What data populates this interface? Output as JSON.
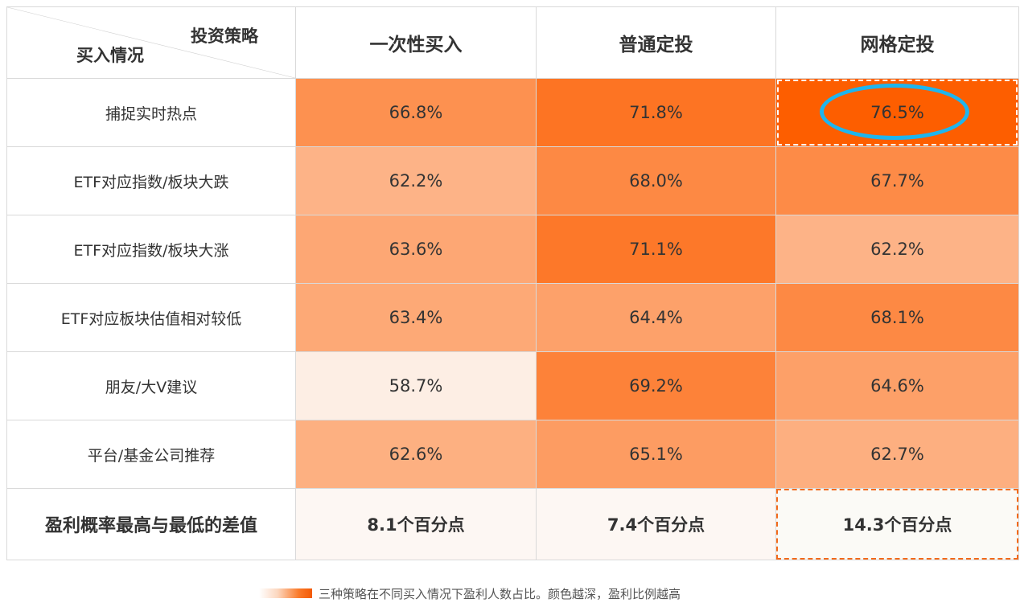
{
  "colors": {
    "scale_low": "#fdeee4",
    "scale_high": "#fd5e00",
    "footer_bg": "#fdf7f3",
    "dash_orange": "#f26a1b",
    "ellipse_blue": "#1eb5ee",
    "grid": "#d9d9d9"
  },
  "chart_data": {
    "type": "heatmap",
    "title": "",
    "corner": {
      "column_axis_label": "投资策略",
      "row_axis_label": "买入情况"
    },
    "columns": [
      "一次性买入",
      "普通定投",
      "网格定投"
    ],
    "rows": [
      {
        "label": "捕捉实时热点",
        "values": [
          66.8,
          71.8,
          76.5
        ],
        "display": [
          "66.8%",
          "71.8%",
          "76.5%"
        ]
      },
      {
        "label": "ETF对应指数/板块大跌",
        "values": [
          62.2,
          68.0,
          67.7
        ],
        "display": [
          "62.2%",
          "68.0%",
          "67.7%"
        ]
      },
      {
        "label": "ETF对应指数/板块大涨",
        "values": [
          63.6,
          71.1,
          62.2
        ],
        "display": [
          "63.6%",
          "71.1%",
          "62.2%"
        ]
      },
      {
        "label": "ETF对应板块估值相对较低",
        "values": [
          63.4,
          64.4,
          68.1
        ],
        "display": [
          "63.4%",
          "64.4%",
          "68.1%"
        ]
      },
      {
        "label": "朋友/大V建议",
        "values": [
          58.7,
          69.2,
          64.6
        ],
        "display": [
          "58.7%",
          "69.2%",
          "64.6%"
        ]
      },
      {
        "label": "平台/基金公司推荐",
        "values": [
          62.6,
          65.1,
          62.7
        ],
        "display": [
          "62.6%",
          "65.1%",
          "62.7%"
        ]
      }
    ],
    "summary_row": {
      "label": "盈利概率最高与最低的差值",
      "values": [
        8.1,
        7.4,
        14.3
      ],
      "display": [
        "8.1个百分点",
        "7.4个百分点",
        "14.3个百分点"
      ]
    },
    "highlight": {
      "row": 0,
      "column": 2,
      "marker": "blue-ellipse",
      "border": "white-dashed"
    },
    "highlight_summary_column": 2,
    "legend": {
      "text": "三种策略在不同买入情况下盈利人数占比。颜色越深，盈利比例越高",
      "placement": "bottom-center"
    }
  }
}
